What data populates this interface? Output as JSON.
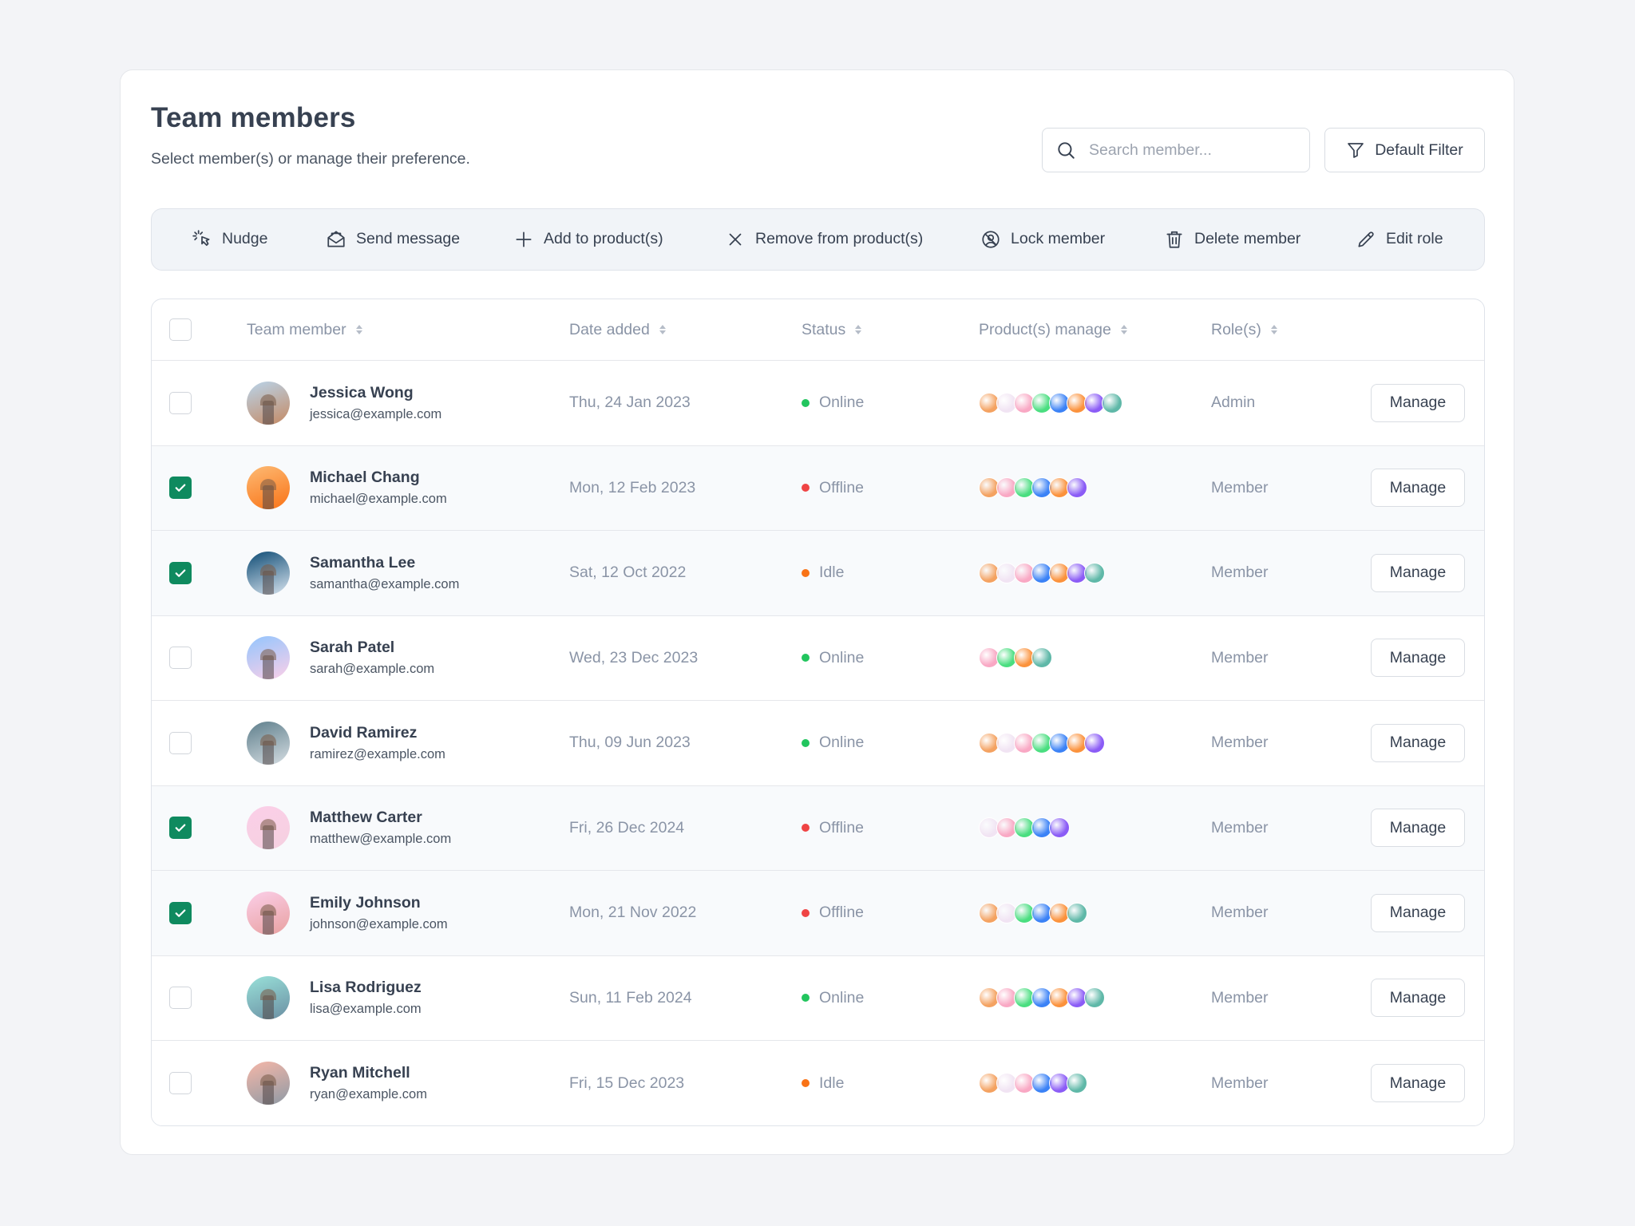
{
  "header": {
    "title": "Team members",
    "subtitle": "Select member(s) or manage their preference.",
    "search_placeholder": "Search member...",
    "filter_label": "Default Filter"
  },
  "toolbar": [
    {
      "label": "Nudge",
      "icon": "nudge-icon"
    },
    {
      "label": "Send message",
      "icon": "mail-icon"
    },
    {
      "label": "Add to product(s)",
      "icon": "plus-icon"
    },
    {
      "label": "Remove from product(s)",
      "icon": "close-icon"
    },
    {
      "label": "Lock member",
      "icon": "lock-user-icon"
    },
    {
      "label": "Delete member",
      "icon": "trash-icon"
    },
    {
      "label": "Edit role",
      "icon": "pencil-icon"
    }
  ],
  "table": {
    "columns": [
      "Team member",
      "Date added",
      "Status",
      "Product(s) manage",
      "Role(s)"
    ],
    "manage_label": "Manage",
    "status_colors": {
      "Online": "#22c55e",
      "Offline": "#ef4444",
      "Idle": "#f97316"
    },
    "checkbox_color": "#0f8a5f",
    "product_colors": [
      "#f4a261",
      "#f1e4f3",
      "#f9a8c4",
      "#4ade80",
      "#3b82f6",
      "#fb923c",
      "#8b5cf6",
      "#5fb8a8"
    ],
    "rows": [
      {
        "name": "Jessica Wong",
        "email": "jessica@example.com",
        "date": "Thu, 24 Jan 2023",
        "status": "Online",
        "role": "Admin",
        "selected": false,
        "products": [
          0,
          1,
          2,
          3,
          4,
          5,
          6,
          7
        ],
        "avatar": [
          "#b9d4ea",
          "#c58a64"
        ]
      },
      {
        "name": "Michael Chang",
        "email": "michael@example.com",
        "date": "Mon, 12 Feb 2023",
        "status": "Offline",
        "role": "Member",
        "selected": true,
        "products": [
          0,
          2,
          3,
          4,
          5,
          6
        ],
        "avatar": [
          "#fdba74",
          "#f97316"
        ]
      },
      {
        "name": "Samantha Lee",
        "email": "samantha@example.com",
        "date": "Sat, 12 Oct 2022",
        "status": "Idle",
        "role": "Member",
        "selected": true,
        "products": [
          0,
          1,
          2,
          4,
          5,
          6,
          7
        ],
        "avatar": [
          "#0f4c75",
          "#d7e3ee"
        ]
      },
      {
        "name": "Sarah Patel",
        "email": "sarah@example.com",
        "date": "Wed, 23 Dec 2023",
        "status": "Online",
        "role": "Member",
        "selected": false,
        "products": [
          2,
          3,
          5,
          7
        ],
        "avatar": [
          "#93c5fd",
          "#fbcfe8"
        ]
      },
      {
        "name": "David Ramirez",
        "email": "ramirez@example.com",
        "date": "Thu, 09 Jun 2023",
        "status": "Online",
        "role": "Member",
        "selected": false,
        "products": [
          0,
          1,
          2,
          3,
          4,
          5,
          6
        ],
        "avatar": [
          "#5f7f8c",
          "#d5dde2"
        ]
      },
      {
        "name": "Matthew Carter",
        "email": "matthew@example.com",
        "date": "Fri, 26 Dec 2024",
        "status": "Offline",
        "role": "Member",
        "selected": true,
        "products": [
          1,
          2,
          3,
          4,
          6
        ],
        "avatar": [
          "#fbcfe8",
          "#f5d0e0"
        ]
      },
      {
        "name": "Emily Johnson",
        "email": "johnson@example.com",
        "date": "Mon, 21 Nov 2022",
        "status": "Offline",
        "role": "Member",
        "selected": true,
        "products": [
          0,
          1,
          3,
          4,
          5,
          7
        ],
        "avatar": [
          "#fbcfe8",
          "#e8a0a0"
        ]
      },
      {
        "name": "Lisa Rodriguez",
        "email": "lisa@example.com",
        "date": "Sun, 11 Feb 2024",
        "status": "Online",
        "role": "Member",
        "selected": false,
        "products": [
          0,
          2,
          3,
          4,
          5,
          6,
          7
        ],
        "avatar": [
          "#99e1d9",
          "#6b8fa3"
        ]
      },
      {
        "name": "Ryan Mitchell",
        "email": "ryan@example.com",
        "date": "Fri, 15 Dec 2023",
        "status": "Idle",
        "role": "Member",
        "selected": false,
        "products": [
          0,
          1,
          2,
          4,
          6,
          7
        ],
        "avatar": [
          "#f5b7a8",
          "#8f9aa5"
        ]
      }
    ]
  }
}
